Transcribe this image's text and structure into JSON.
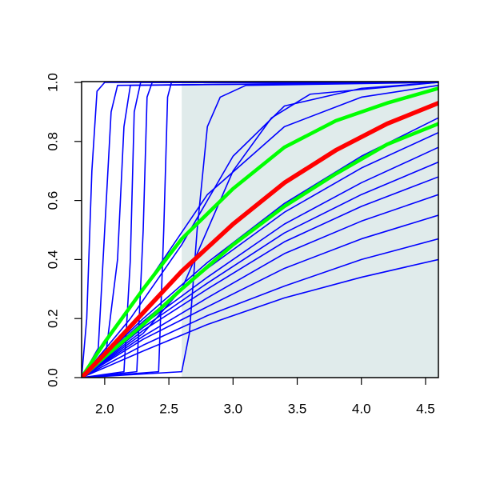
{
  "chart_data": {
    "type": "line",
    "xlim": [
      1.82,
      4.6
    ],
    "ylim": [
      0,
      1
    ],
    "xticks": [
      {
        "value": 2.0,
        "label": "2.0"
      },
      2.5,
      {
        "value": 3.0,
        "label": "3.0"
      },
      3.5,
      {
        "value": 4.0,
        "label": "4.0"
      },
      4.5
    ],
    "yticks": [
      {
        "value": 0,
        "label": "0.0"
      },
      0.2,
      0.4,
      0.6,
      0.8,
      {
        "value": 1,
        "label": "1.0"
      }
    ],
    "shaded_region": {
      "x": [
        2.6,
        4.6
      ],
      "color": "#e0ebeb"
    },
    "series": [
      {
        "color": "#0000ff",
        "x": [
          1.82,
          2.3,
          2.8,
          3.4,
          4.0,
          4.6
        ],
        "values": [
          0,
          0.09,
          0.18,
          0.27,
          0.34,
          0.4
        ]
      },
      {
        "color": "#0000ff",
        "x": [
          1.82,
          2.3,
          2.8,
          3.4,
          4.0,
          4.6
        ],
        "values": [
          0,
          0.11,
          0.21,
          0.31,
          0.4,
          0.47
        ]
      },
      {
        "color": "#0000ff",
        "x": [
          1.82,
          2.3,
          2.8,
          3.4,
          4.0,
          4.6
        ],
        "values": [
          0,
          0.13,
          0.24,
          0.37,
          0.47,
          0.55
        ]
      },
      {
        "color": "#0000ff",
        "x": [
          1.82,
          2.3,
          2.8,
          3.4,
          4.0,
          4.6
        ],
        "values": [
          0,
          0.14,
          0.27,
          0.42,
          0.53,
          0.62
        ]
      },
      {
        "color": "#0000ff",
        "x": [
          1.82,
          2.3,
          2.8,
          3.4,
          4.0,
          4.6
        ],
        "values": [
          0,
          0.16,
          0.3,
          0.46,
          0.58,
          0.68
        ]
      },
      {
        "color": "#0000ff",
        "x": [
          1.82,
          2.3,
          2.8,
          3.4,
          4.0,
          4.6
        ],
        "values": [
          0,
          0.17,
          0.32,
          0.49,
          0.62,
          0.73
        ]
      },
      {
        "color": "#0000ff",
        "x": [
          1.82,
          2.3,
          2.8,
          3.4,
          4.0,
          4.6
        ],
        "values": [
          0,
          0.18,
          0.34,
          0.52,
          0.66,
          0.78
        ]
      },
      {
        "color": "#0000ff",
        "x": [
          1.82,
          2.3,
          2.8,
          3.4,
          4.0,
          4.6
        ],
        "values": [
          0,
          0.19,
          0.37,
          0.56,
          0.71,
          0.83
        ]
      },
      {
        "color": "#0000ff",
        "x": [
          1.82,
          2.3,
          2.8,
          3.4,
          4.0,
          4.6
        ],
        "values": [
          0,
          0.2,
          0.39,
          0.59,
          0.75,
          0.88
        ]
      },
      {
        "color": "#0000ff",
        "x": [
          1.82,
          2.3,
          2.8,
          3.4,
          4.0,
          4.6
        ],
        "values": [
          0,
          0.3,
          0.62,
          0.85,
          0.95,
          0.99
        ]
      },
      {
        "color": "#0000ff",
        "x": [
          1.82,
          1.86,
          1.9,
          1.94,
          2.0,
          4.6
        ],
        "values": [
          0,
          0.2,
          0.7,
          0.97,
          1,
          1
        ]
      },
      {
        "color": "#0000ff",
        "x": [
          1.82,
          1.95,
          2.0,
          2.05,
          2.1,
          4.6
        ],
        "values": [
          0,
          0.1,
          0.5,
          0.9,
          0.99,
          1
        ]
      },
      {
        "color": "#0000ff",
        "x": [
          1.82,
          2.0,
          2.1,
          2.15,
          2.2,
          4.6
        ],
        "values": [
          0,
          0.05,
          0.4,
          0.85,
          0.99,
          1
        ]
      },
      {
        "color": "#0000ff",
        "x": [
          1.82,
          2.15,
          2.2,
          2.23,
          2.28,
          4.6
        ],
        "values": [
          0,
          0.02,
          0.4,
          0.9,
          1,
          1
        ]
      },
      {
        "color": "#0000ff",
        "x": [
          1.82,
          2.25,
          2.3,
          2.33,
          2.37,
          4.6
        ],
        "values": [
          0,
          0.02,
          0.5,
          0.95,
          1,
          1
        ]
      },
      {
        "color": "#0000ff",
        "x": [
          1.82,
          2.42,
          2.46,
          2.49,
          2.52,
          4.6
        ],
        "values": [
          0,
          0.02,
          0.5,
          0.95,
          1,
          1
        ]
      },
      {
        "color": "#0000ff",
        "x": [
          1.82,
          2.6,
          2.66,
          2.72,
          2.8,
          2.9,
          3.1,
          4.6
        ],
        "values": [
          0,
          0.02,
          0.15,
          0.5,
          0.85,
          0.95,
          0.99,
          1
        ]
      },
      {
        "color": "#0000ff",
        "x": [
          1.82,
          2.3,
          2.6,
          2.8,
          3.0,
          3.3,
          3.6,
          4.6
        ],
        "values": [
          0,
          0.15,
          0.3,
          0.5,
          0.7,
          0.88,
          0.96,
          1
        ]
      },
      {
        "color": "#0000ff",
        "x": [
          1.82,
          2.2,
          2.6,
          3.0,
          3.4,
          4.0,
          4.6
        ],
        "values": [
          0,
          0.2,
          0.45,
          0.75,
          0.92,
          0.98,
          1
        ]
      },
      {
        "color": "#00ff00",
        "x": [
          1.82,
          2.0,
          2.3,
          2.6,
          3.0,
          3.4,
          3.8,
          4.2,
          4.6
        ],
        "values": [
          0,
          0.12,
          0.3,
          0.47,
          0.64,
          0.78,
          0.87,
          0.93,
          0.98
        ]
      },
      {
        "color": "#00ff00",
        "x": [
          1.82,
          2.0,
          2.3,
          2.6,
          3.0,
          3.4,
          3.8,
          4.2,
          4.6
        ],
        "values": [
          0,
          0.07,
          0.18,
          0.3,
          0.45,
          0.58,
          0.69,
          0.79,
          0.86
        ]
      },
      {
        "color": "#ff0000",
        "x": [
          1.82,
          2.0,
          2.3,
          2.6,
          3.0,
          3.4,
          3.8,
          4.2,
          4.6
        ],
        "values": [
          0,
          0.08,
          0.22,
          0.36,
          0.52,
          0.66,
          0.77,
          0.86,
          0.93
        ]
      }
    ]
  }
}
